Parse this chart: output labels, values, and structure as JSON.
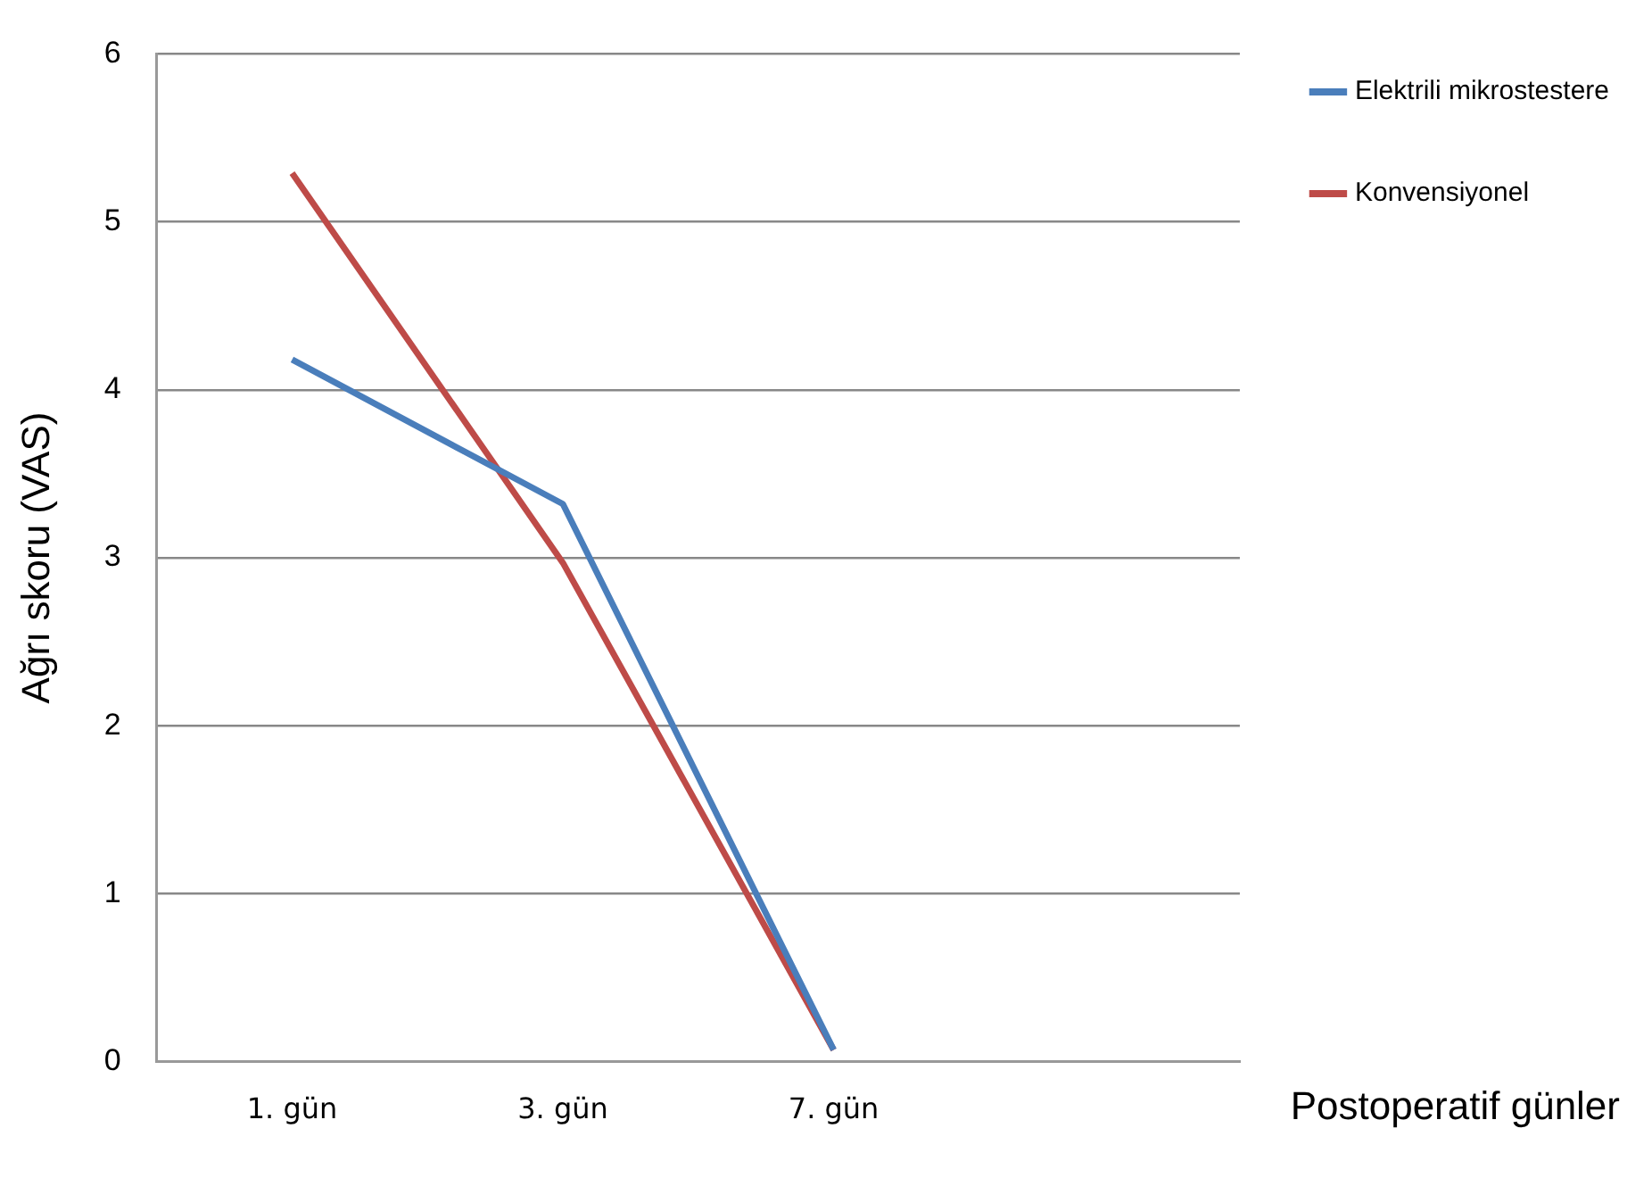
{
  "chart_data": {
    "type": "line",
    "xlabel": "Postoperatif günler",
    "ylabel": "Ağrı skoru (VAS)",
    "categories": [
      "1. gün",
      "3. gün",
      "7. gün",
      null
    ],
    "series": [
      {
        "name": "Elektrili mikrostestere",
        "color": "#4a7ebb",
        "values": [
          4.18,
          3.32,
          0.07,
          null
        ]
      },
      {
        "name": "Konvensiyonel",
        "color": "#be4b48",
        "values": [
          5.29,
          2.97,
          0.07,
          null
        ]
      }
    ],
    "ylim": [
      0,
      6
    ],
    "yticks": [
      0,
      1,
      2,
      3,
      4,
      5,
      6
    ],
    "grid": "y",
    "legend": "top right",
    "marker": "none",
    "line_style": "solid"
  }
}
